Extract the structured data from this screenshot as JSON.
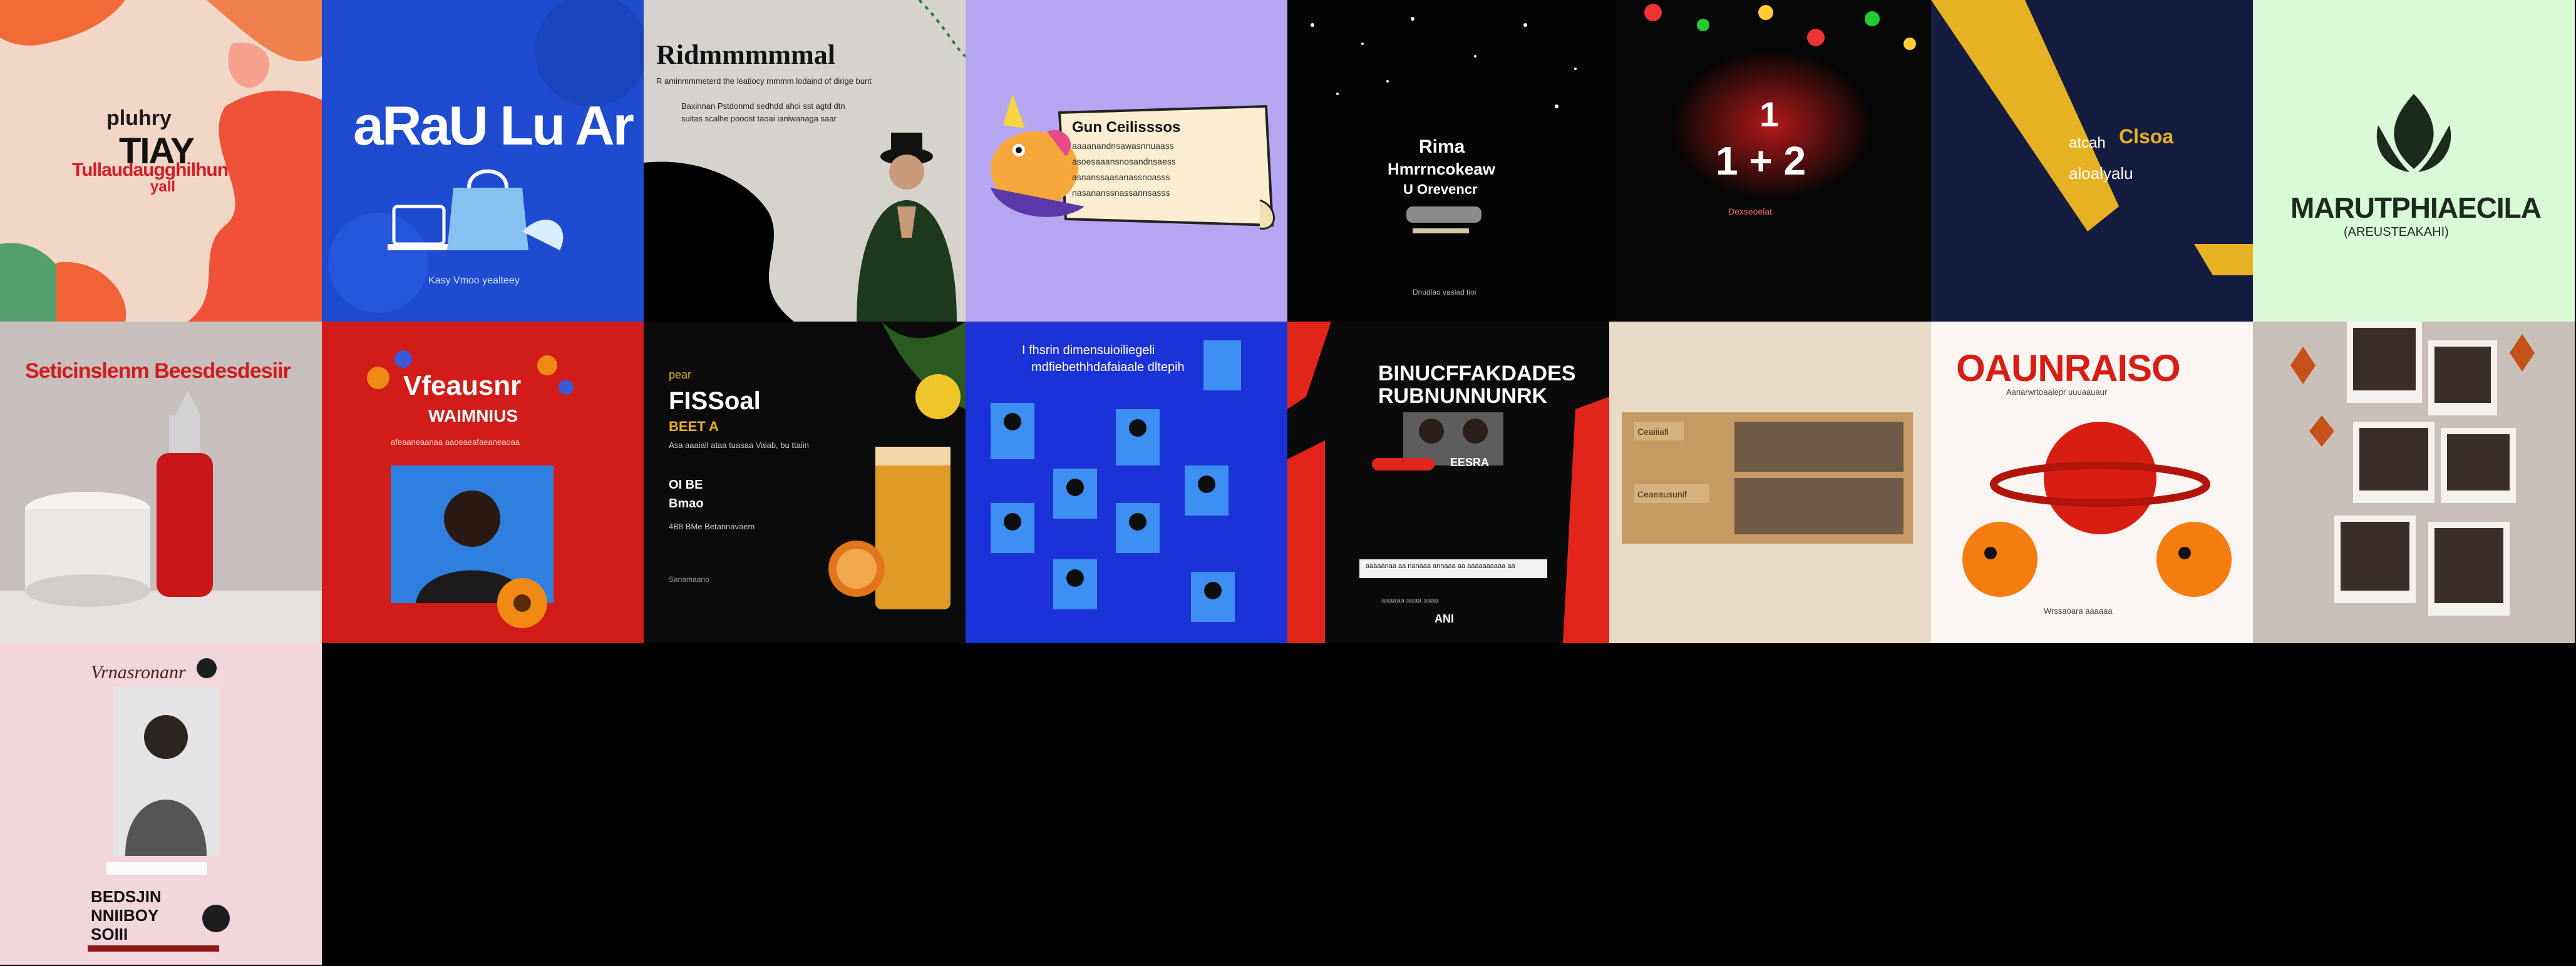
{
  "colors": {
    "page_background": "#000000",
    "accent_red": "#e1251b",
    "royal_blue": "#1f4bd0",
    "lavender": "#b6a6f2",
    "mint": "#d8fad7",
    "navy": "#141c3f",
    "beige": "#e8dcc8"
  },
  "tiles": [
    {
      "id": "t1",
      "bg": "#f2d6c6",
      "lines": [
        "pluhry",
        "TIAY",
        "Tullaudaugghilhun",
        "yall"
      ],
      "icons": []
    },
    {
      "id": "t2",
      "bg": "#1f4bd0",
      "lines": [
        "aRaU Lu Ar",
        "Kasy Vmoo yealteey"
      ],
      "icons": [
        "shopping-bag-icon",
        "laptop-icon"
      ]
    },
    {
      "id": "t3",
      "bg": "#d6d3cf",
      "lines": [
        "Ridmmmmmal",
        "R aminmmmeterd the leatiocy mmmm lodaind of dirige bunt",
        "Baxinnan Pstdonmd sedhdd ahoi sst agtd dtn",
        "suitas scalhe pooost taoai ianiwanaga saar"
      ],
      "icons": [
        "person-praying-icon"
      ]
    },
    {
      "id": "t4",
      "bg": "#b6a6f2",
      "lines": [
        "Gun Ceilisssos",
        "aaaanandnsawasnnuaass",
        "asoesaaansnosandnsaess",
        "asnanssaasanassnoasss",
        "nasananssnassannsasss"
      ],
      "icons": [
        "unicorn-icon",
        "scroll-banner-icon"
      ]
    },
    {
      "id": "t5",
      "bg": "#050505",
      "lines": [
        "Rima",
        "Hmrrncokeaw",
        "U Orevencr",
        "Dnudlao vaslad tioi"
      ],
      "icons": [
        "sparkle-icon",
        "microphone-icon"
      ]
    },
    {
      "id": "t6",
      "bg": "#060606",
      "lines": [
        "1",
        "1 + 2",
        "Dexseoelat"
      ],
      "icons": [
        "bokeh-lights-icon"
      ]
    },
    {
      "id": "t7",
      "bg": "#141c3f",
      "lines": [
        "Clsoa",
        "atcah",
        "aloalyalu"
      ],
      "icons": [
        "gold-stripe-icon"
      ]
    },
    {
      "id": "t8",
      "bg": "#d8fad7",
      "lines": [
        "MARUTPHIAECILA",
        "(AREUSTEAKAHI)"
      ],
      "icons": [
        "leaf-flame-icon"
      ]
    },
    {
      "id": "t9",
      "bg": "#c7bfbd",
      "lines": [
        "Seticinslenm Beesdesdesiir"
      ],
      "icons": [
        "cosmetic-bottle-icon",
        "cream-jar-icon"
      ]
    },
    {
      "id": "t10",
      "bg": "#d21c1a",
      "lines": [
        "Vfeausnr",
        "WAIMNIUS",
        "afeaaneaanaa aaoeaeafaeaneaoaa"
      ],
      "icons": [
        "flowers-icon",
        "portrait-photo-icon"
      ]
    },
    {
      "id": "t11",
      "bg": "#0b0b0b",
      "lines": [
        "pear",
        "FISSoal",
        "BEET A",
        "Asa aaaiall ataa tuasaa Vaiab, bu ttaiin",
        "OI BE",
        "Bmao",
        "4B8 BMe Betannavaem",
        "Sanamaano"
      ],
      "icons": [
        "cocktail-glass-icon",
        "orange-slice-icon"
      ]
    },
    {
      "id": "t12",
      "bg": "#1b32d8",
      "lines": [
        "I fhsrin dimensuioiliegeli",
        "mdfiebethhdafaiaale dltepih"
      ],
      "icons": [
        "people-cards-icon"
      ]
    },
    {
      "id": "t13",
      "bg": "#0a0a0a",
      "lines": [
        "BINUCFFAKDADES",
        "RUBNUNNUNRK",
        "EESRA",
        "aaaaanaa aa nanaaa annaaa aa aaaaaaaaaa aa",
        "ANI",
        "aaaaaa aaaa aaaa"
      ],
      "icons": [
        "portrait-photo-icon",
        "red-shapes-icon"
      ]
    },
    {
      "id": "t14",
      "bg": "#e8dcc8",
      "lines": [
        "Ceaiiiafl",
        "Ceaeausunif"
      ],
      "icons": [
        "photo-frame-icon"
      ]
    },
    {
      "id": "t15",
      "bg": "#fbf6f3",
      "lines": [
        "OAUNRAISO",
        "Aanarwrtoaaiepr uuuaauaur",
        "Wrssaoara aaaaaa"
      ],
      "icons": [
        "red-planet-icon",
        "monster-icon"
      ]
    },
    {
      "id": "t16",
      "bg": "#c8c0b8",
      "lines": [],
      "icons": [
        "polaroid-collage-icon",
        "autumn-leaves-icon"
      ]
    },
    {
      "id": "t17",
      "bg": "#f1d7db",
      "lines": [
        "Vrnasronanr",
        "BEDSJIN",
        "NNIIBOY",
        "SOIII"
      ],
      "icons": [
        "portrait-photo-icon",
        "rose-icon"
      ]
    }
  ]
}
